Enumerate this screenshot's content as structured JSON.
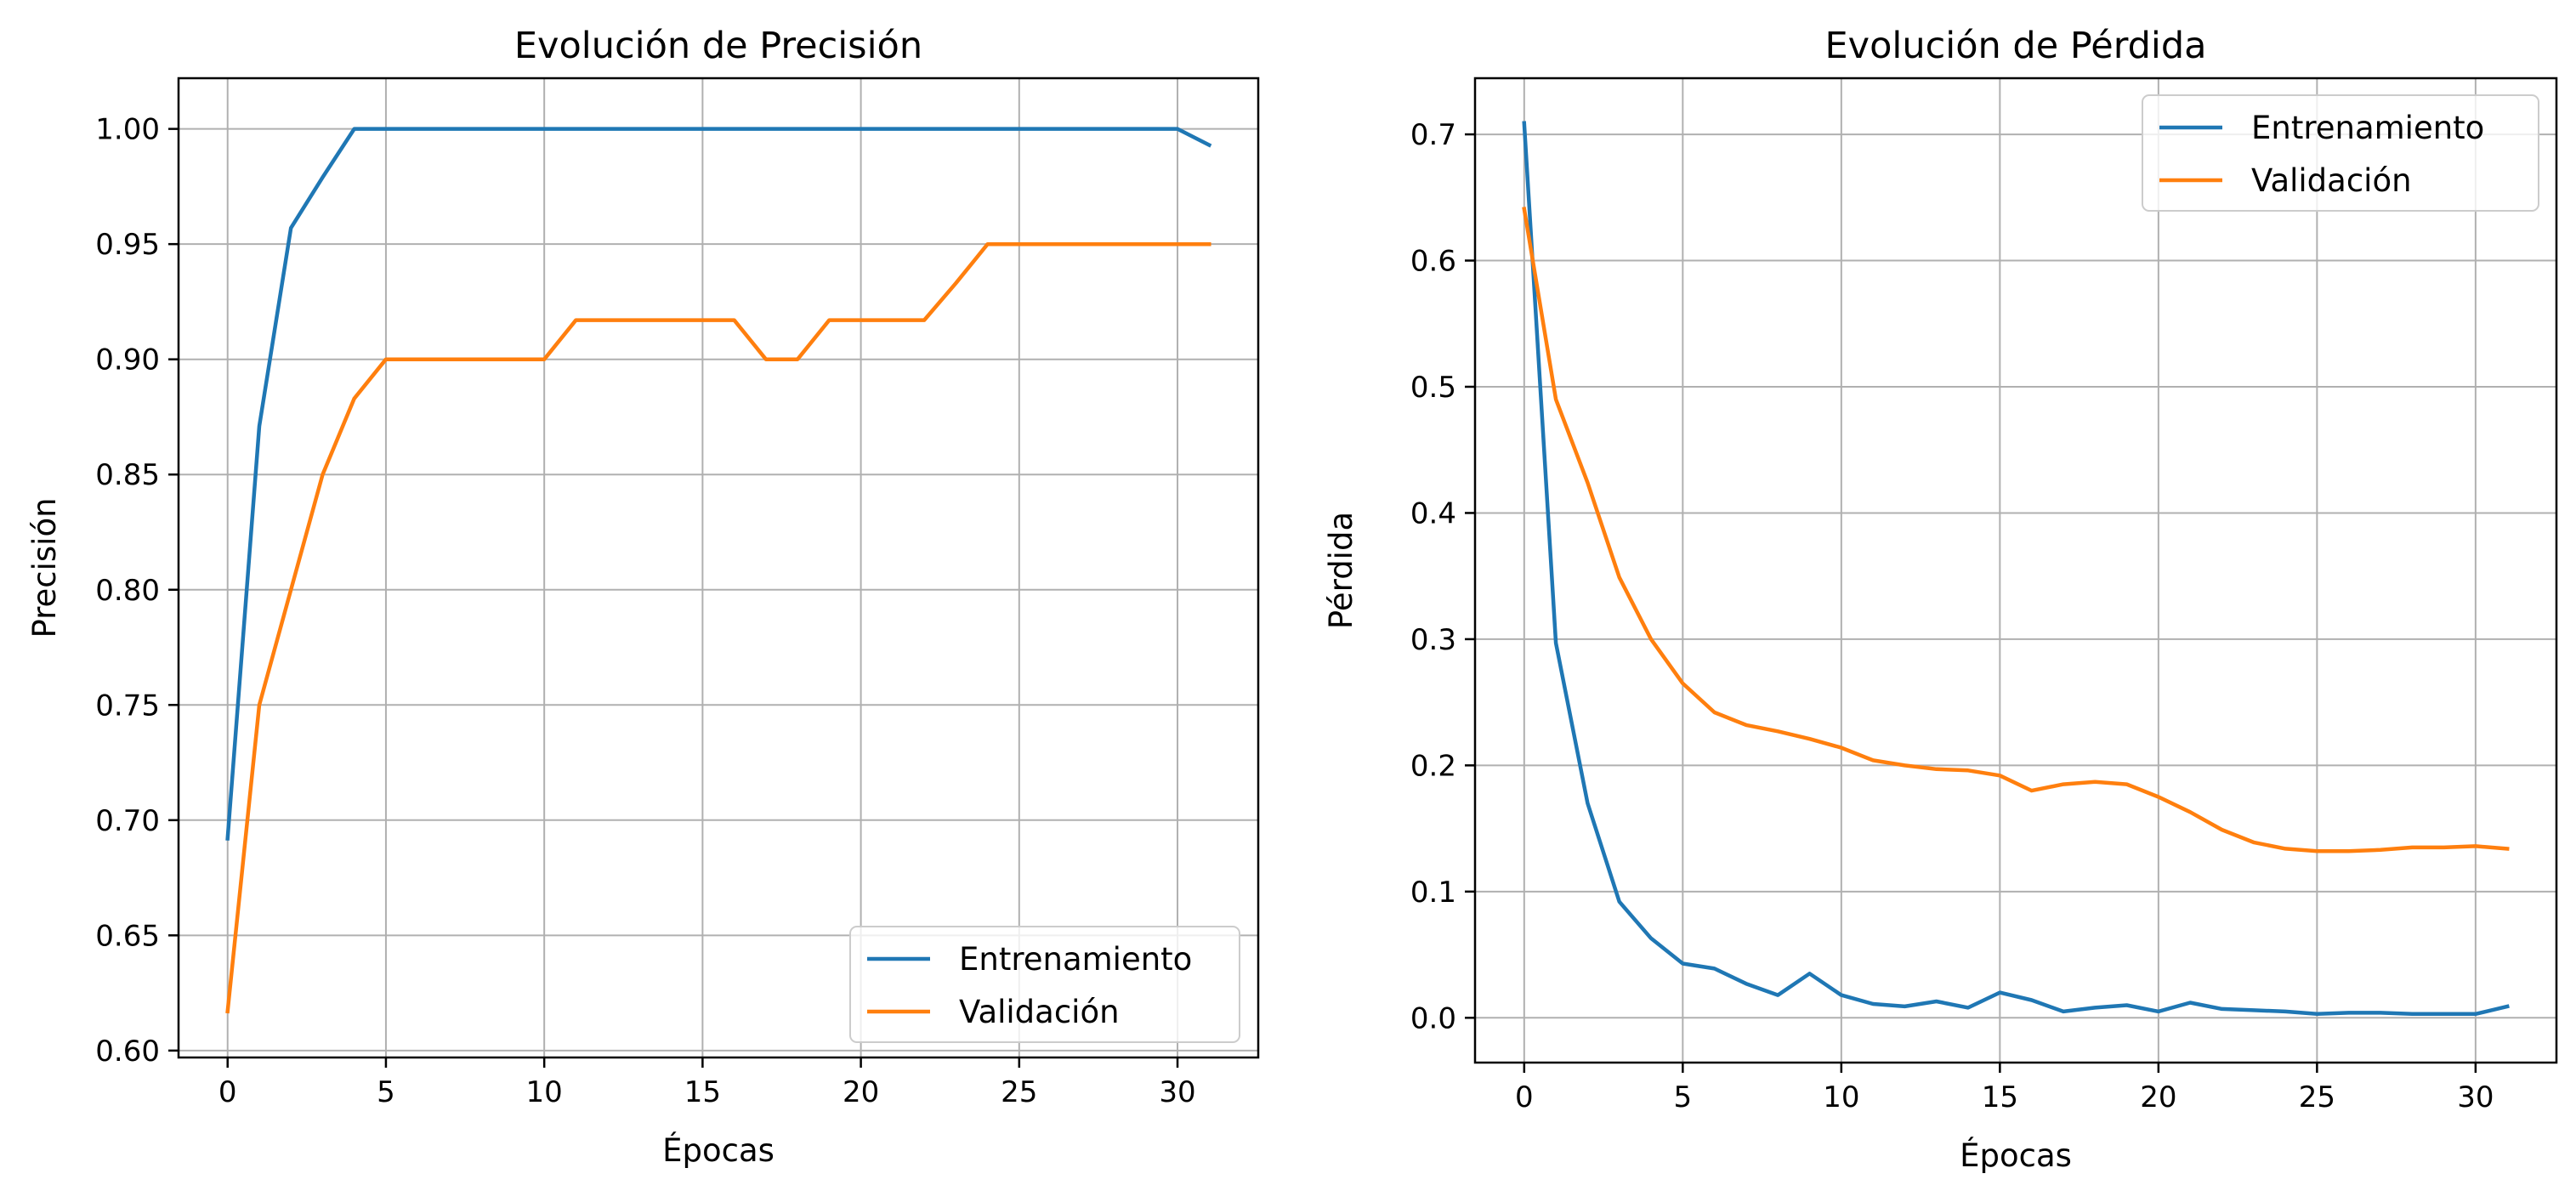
{
  "colors": {
    "train": "#1f77b4",
    "val": "#ff7f0e"
  },
  "chart_data": [
    {
      "type": "line",
      "title": "Evolución de Precisión",
      "xlabel": "Épocas",
      "ylabel": "Precisión",
      "xlim": [
        -1.55,
        32.55
      ],
      "ylim": [
        0.597,
        1.022
      ],
      "xticks": [
        0,
        5,
        10,
        15,
        20,
        25,
        30
      ],
      "yticks": [
        0.6,
        0.65,
        0.7,
        0.75,
        0.8,
        0.85,
        0.9,
        0.95,
        1.0
      ],
      "ytick_labels": [
        "0.60",
        "0.65",
        "0.70",
        "0.75",
        "0.80",
        "0.85",
        "0.90",
        "0.95",
        "1.00"
      ],
      "grid": true,
      "legend_position": "lower-right",
      "x": [
        0,
        1,
        2,
        3,
        4,
        5,
        6,
        7,
        8,
        9,
        10,
        11,
        12,
        13,
        14,
        15,
        16,
        17,
        18,
        19,
        20,
        21,
        22,
        23,
        24,
        25,
        26,
        27,
        28,
        29,
        30,
        31
      ],
      "series": [
        {
          "name": "Entrenamiento",
          "color": "#1f77b4",
          "values": [
            0.692,
            0.871,
            0.957,
            0.979,
            1.0,
            1.0,
            1.0,
            1.0,
            1.0,
            1.0,
            1.0,
            1.0,
            1.0,
            1.0,
            1.0,
            1.0,
            1.0,
            1.0,
            1.0,
            1.0,
            1.0,
            1.0,
            1.0,
            1.0,
            1.0,
            1.0,
            1.0,
            1.0,
            1.0,
            1.0,
            1.0,
            0.993
          ]
        },
        {
          "name": "Validación",
          "color": "#ff7f0e",
          "values": [
            0.617,
            0.75,
            0.8,
            0.85,
            0.883,
            0.9,
            0.9,
            0.9,
            0.9,
            0.9,
            0.9,
            0.917,
            0.917,
            0.917,
            0.917,
            0.917,
            0.917,
            0.9,
            0.9,
            0.917,
            0.917,
            0.917,
            0.917,
            0.933,
            0.95,
            0.95,
            0.95,
            0.95,
            0.95,
            0.95,
            0.95,
            0.95
          ]
        }
      ]
    },
    {
      "type": "line",
      "title": "Evolución de Pérdida",
      "xlabel": "Épocas",
      "ylabel": "Pérdida",
      "xlim": [
        -1.55,
        32.55
      ],
      "ylim": [
        -0.0355,
        0.7445
      ],
      "xticks": [
        0,
        5,
        10,
        15,
        20,
        25,
        30
      ],
      "yticks": [
        0.0,
        0.1,
        0.2,
        0.3,
        0.4,
        0.5,
        0.6,
        0.7
      ],
      "ytick_labels": [
        "0.0",
        "0.1",
        "0.2",
        "0.3",
        "0.4",
        "0.5",
        "0.6",
        "0.7"
      ],
      "grid": true,
      "legend_position": "upper-right",
      "x": [
        0,
        1,
        2,
        3,
        4,
        5,
        6,
        7,
        8,
        9,
        10,
        11,
        12,
        13,
        14,
        15,
        16,
        17,
        18,
        19,
        20,
        21,
        22,
        23,
        24,
        25,
        26,
        27,
        28,
        29,
        30,
        31
      ],
      "series": [
        {
          "name": "Entrenamiento",
          "color": "#1f77b4",
          "values": [
            0.709,
            0.297,
            0.17,
            0.092,
            0.063,
            0.043,
            0.039,
            0.027,
            0.018,
            0.035,
            0.018,
            0.011,
            0.009,
            0.013,
            0.008,
            0.02,
            0.014,
            0.005,
            0.008,
            0.01,
            0.005,
            0.012,
            0.007,
            0.006,
            0.005,
            0.003,
            0.004,
            0.004,
            0.003,
            0.003,
            0.003,
            0.009
          ]
        },
        {
          "name": "Validación",
          "color": "#ff7f0e",
          "values": [
            0.641,
            0.49,
            0.424,
            0.349,
            0.3,
            0.265,
            0.242,
            0.232,
            0.227,
            0.221,
            0.214,
            0.204,
            0.2,
            0.197,
            0.196,
            0.192,
            0.18,
            0.185,
            0.187,
            0.185,
            0.175,
            0.163,
            0.149,
            0.139,
            0.134,
            0.132,
            0.132,
            0.133,
            0.135,
            0.135,
            0.136,
            0.134
          ]
        }
      ]
    }
  ]
}
